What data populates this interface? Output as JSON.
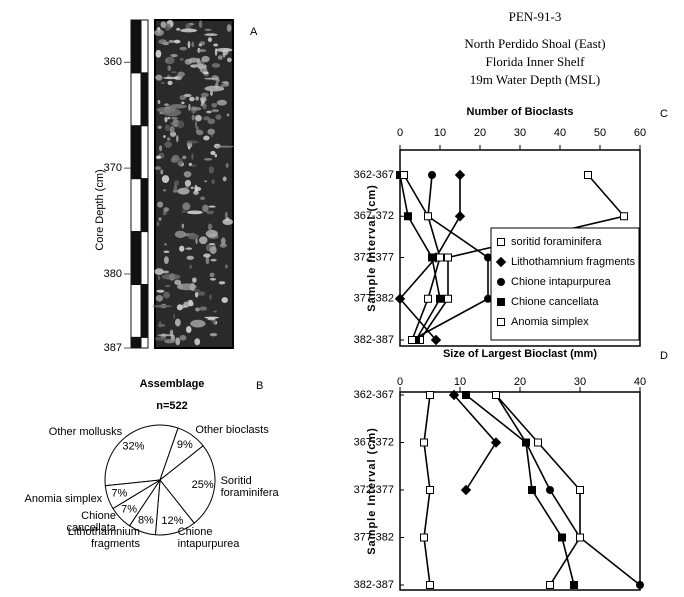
{
  "header": {
    "title": "PEN-91-3",
    "lines": [
      "North Perdido Shoal (East)",
      "Florida Inner Shelf",
      "19m Water Depth (MSL)"
    ]
  },
  "chart_data": [
    {
      "type": "core",
      "panel": "A",
      "ylabel": "Core Depth (cm)",
      "ylim": [
        356,
        387
      ],
      "yticks": [
        360,
        370,
        380,
        387
      ]
    },
    {
      "type": "pie",
      "panel": "B",
      "title": "Assemblage",
      "subtitle": "n=522",
      "labels": [
        "Other mollusks",
        "Other bioclasts",
        "Soritid foraminifera",
        "Chione intapurpurea",
        "Lithothamnium fragments",
        "Chione cancellata",
        "Anomia simplex"
      ],
      "values": [
        32,
        9,
        25,
        12,
        8,
        7,
        7
      ],
      "value_labels": [
        "32%",
        "9%",
        "25%",
        "12%",
        "8%",
        "7%",
        "7%"
      ]
    },
    {
      "type": "line",
      "panel": "C",
      "title": "Number of Bioclasts",
      "ylabel": "Sample Interval (cm)",
      "categories": [
        "362-367",
        "367-372",
        "372-377",
        "377-382",
        "382-387"
      ],
      "xlim": [
        0,
        60
      ],
      "xticks": [
        0,
        10,
        20,
        30,
        40,
        50,
        60
      ],
      "legend": "lower right",
      "series": [
        {
          "name": "soritid foraminifera",
          "marker": "square-open",
          "color": "#000000",
          "values": [
            47,
            56,
            12,
            12,
            5
          ]
        },
        {
          "name": "Lithothamnium fragments",
          "marker": "diamond-filled",
          "color": "#000000",
          "values": [
            15,
            15,
            9,
            0,
            9
          ]
        },
        {
          "name": "Chione intapurpurea",
          "marker": "circle-filled",
          "color": "#000000",
          "values": [
            8,
            7,
            22,
            22,
            3
          ]
        },
        {
          "name": "Chione cancellata",
          "marker": "square-filled",
          "color": "#000000",
          "values": [
            0,
            2,
            8,
            10,
            4
          ]
        },
        {
          "name": "Anomia simplex",
          "marker": "square-open",
          "color": "#000000",
          "values": [
            1,
            7,
            10,
            7,
            3
          ]
        }
      ]
    },
    {
      "type": "line",
      "panel": "D",
      "title": "Size of Largest Bioclast (mm)",
      "ylabel": "Sample Interval (cm)",
      "categories": [
        "362-367",
        "367-372",
        "372-377",
        "377-382",
        "382-387"
      ],
      "xlim": [
        0,
        40
      ],
      "xticks": [
        0,
        10,
        20,
        30,
        40
      ],
      "series": [
        {
          "marker": "square-open",
          "color": "#000000",
          "values": [
            5,
            4,
            5,
            4,
            5
          ]
        },
        {
          "marker": "diamond-filled",
          "color": "#000000",
          "values": [
            9,
            16,
            11,
            null,
            null
          ]
        },
        {
          "marker": "square-filled",
          "color": "#000000",
          "values": [
            11,
            21,
            22,
            27,
            29
          ]
        },
        {
          "marker": "circle-filled",
          "color": "#000000",
          "values": [
            16,
            21,
            25,
            30,
            40
          ]
        },
        {
          "marker": "square-open",
          "color": "#000000",
          "values": [
            16,
            23,
            30,
            30,
            25
          ]
        }
      ]
    }
  ]
}
